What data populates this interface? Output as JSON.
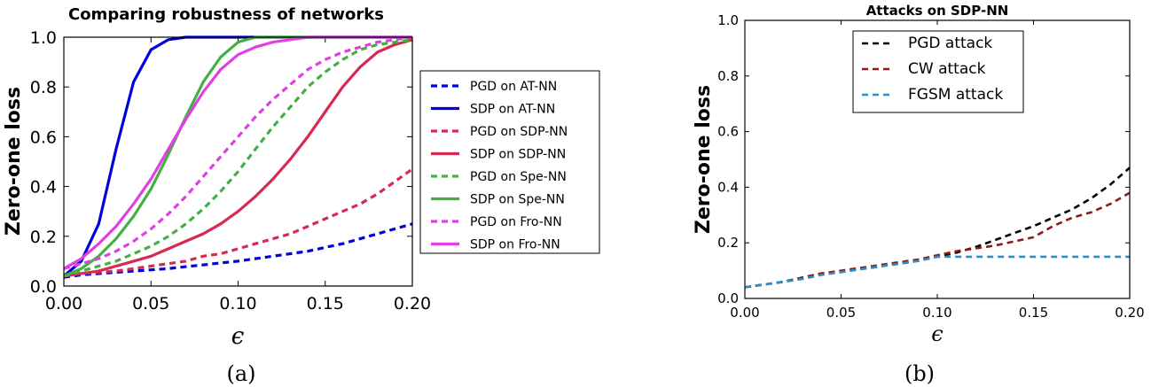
{
  "chart_data": [
    {
      "type": "line",
      "panel": "(a)",
      "title": "Comparing robustness of networks",
      "xlabel": "ϵ",
      "ylabel": "Zero-one loss",
      "xlim": [
        0,
        0.2
      ],
      "ylim": [
        0,
        1.0
      ],
      "xticks": [
        "0.00",
        "0.05",
        "0.10",
        "0.15",
        "0.20"
      ],
      "yticks": [
        "0.0",
        "0.2",
        "0.4",
        "0.6",
        "0.8",
        "1.0"
      ],
      "legend_position": "outside-right",
      "x": [
        0,
        0.01,
        0.02,
        0.03,
        0.04,
        0.05,
        0.06,
        0.07,
        0.08,
        0.09,
        0.1,
        0.11,
        0.12,
        0.13,
        0.14,
        0.15,
        0.16,
        0.17,
        0.18,
        0.19,
        0.2
      ],
      "series": [
        {
          "name": "PGD on AT-NN",
          "color": "#0000dd",
          "dash": true,
          "values": [
            0.035,
            0.045,
            0.05,
            0.055,
            0.06,
            0.065,
            0.07,
            0.078,
            0.085,
            0.093,
            0.1,
            0.11,
            0.12,
            0.13,
            0.14,
            0.155,
            0.17,
            0.19,
            0.21,
            0.23,
            0.25
          ]
        },
        {
          "name": "SDP on AT-NN",
          "color": "#0000dd",
          "dash": false,
          "values": [
            0.04,
            0.1,
            0.25,
            0.55,
            0.82,
            0.95,
            0.99,
            1.0,
            1.0,
            1.0,
            1.0,
            1.0,
            1.0,
            1.0,
            1.0,
            1.0,
            1.0,
            1.0,
            1.0,
            1.0,
            1.0
          ]
        },
        {
          "name": "PGD on SDP-NN",
          "color": "#d62a52",
          "dash": true,
          "values": [
            0.04,
            0.05,
            0.055,
            0.06,
            0.07,
            0.08,
            0.09,
            0.1,
            0.12,
            0.13,
            0.15,
            0.17,
            0.19,
            0.21,
            0.24,
            0.27,
            0.3,
            0.33,
            0.37,
            0.42,
            0.47
          ]
        },
        {
          "name": "SDP on SDP-NN",
          "color": "#d62a52",
          "dash": false,
          "values": [
            0.04,
            0.05,
            0.06,
            0.08,
            0.1,
            0.12,
            0.15,
            0.18,
            0.21,
            0.25,
            0.3,
            0.36,
            0.43,
            0.51,
            0.6,
            0.7,
            0.8,
            0.88,
            0.94,
            0.97,
            0.99
          ]
        },
        {
          "name": "PGD on Spe-NN",
          "color": "#44b044",
          "dash": true,
          "values": [
            0.04,
            0.06,
            0.08,
            0.1,
            0.13,
            0.16,
            0.2,
            0.25,
            0.31,
            0.38,
            0.46,
            0.55,
            0.64,
            0.72,
            0.8,
            0.86,
            0.91,
            0.95,
            0.97,
            0.98,
            0.99
          ]
        },
        {
          "name": "SDP on Spe-NN",
          "color": "#44b044",
          "dash": false,
          "values": [
            0.04,
            0.07,
            0.12,
            0.19,
            0.28,
            0.39,
            0.53,
            0.68,
            0.82,
            0.92,
            0.98,
            1.0,
            1.0,
            1.0,
            1.0,
            1.0,
            1.0,
            1.0,
            1.0,
            1.0,
            1.0
          ]
        },
        {
          "name": "PGD on Fro-NN",
          "color": "#e040e0",
          "dash": true,
          "values": [
            0.07,
            0.09,
            0.11,
            0.14,
            0.18,
            0.23,
            0.29,
            0.36,
            0.44,
            0.52,
            0.6,
            0.68,
            0.75,
            0.81,
            0.87,
            0.91,
            0.94,
            0.96,
            0.98,
            0.99,
            1.0
          ]
        },
        {
          "name": "SDP on Fro-NN",
          "color": "#e040e0",
          "dash": false,
          "values": [
            0.07,
            0.11,
            0.17,
            0.24,
            0.33,
            0.43,
            0.55,
            0.67,
            0.78,
            0.87,
            0.93,
            0.96,
            0.98,
            0.99,
            1.0,
            1.0,
            1.0,
            1.0,
            1.0,
            1.0,
            1.0
          ]
        }
      ]
    },
    {
      "type": "line",
      "panel": "(b)",
      "title": "Attacks on SDP-NN",
      "xlabel": "ϵ",
      "ylabel": "Zero-one loss",
      "xlim": [
        0,
        0.2
      ],
      "ylim": [
        0,
        1.0
      ],
      "xticks": [
        "0.00",
        "0.05",
        "0.10",
        "0.15",
        "0.20"
      ],
      "yticks": [
        "0.0",
        "0.2",
        "0.4",
        "0.6",
        "0.8",
        "1.0"
      ],
      "legend_position": "top-center",
      "x": [
        0,
        0.01,
        0.02,
        0.03,
        0.04,
        0.05,
        0.06,
        0.07,
        0.08,
        0.09,
        0.1,
        0.11,
        0.12,
        0.13,
        0.14,
        0.15,
        0.16,
        0.17,
        0.18,
        0.19,
        0.2
      ],
      "series": [
        {
          "name": "PGD attack",
          "color": "#000000",
          "dash": true,
          "values": [
            0.04,
            0.05,
            0.06,
            0.075,
            0.09,
            0.095,
            0.105,
            0.115,
            0.125,
            0.135,
            0.15,
            0.165,
            0.185,
            0.21,
            0.235,
            0.26,
            0.29,
            0.32,
            0.36,
            0.41,
            0.47
          ]
        },
        {
          "name": "CW attack",
          "color": "#8b1a1a",
          "dash": true,
          "values": [
            0.04,
            0.05,
            0.06,
            0.075,
            0.09,
            0.1,
            0.11,
            0.12,
            0.13,
            0.14,
            0.155,
            0.17,
            0.18,
            0.19,
            0.205,
            0.22,
            0.26,
            0.29,
            0.31,
            0.34,
            0.38
          ]
        },
        {
          "name": "FGSM attack",
          "color": "#2a8fc8",
          "dash": true,
          "values": [
            0.04,
            0.05,
            0.06,
            0.07,
            0.085,
            0.095,
            0.105,
            0.115,
            0.125,
            0.135,
            0.15,
            0.15,
            0.15,
            0.15,
            0.15,
            0.15,
            0.15,
            0.15,
            0.15,
            0.15,
            0.15
          ]
        }
      ]
    }
  ]
}
